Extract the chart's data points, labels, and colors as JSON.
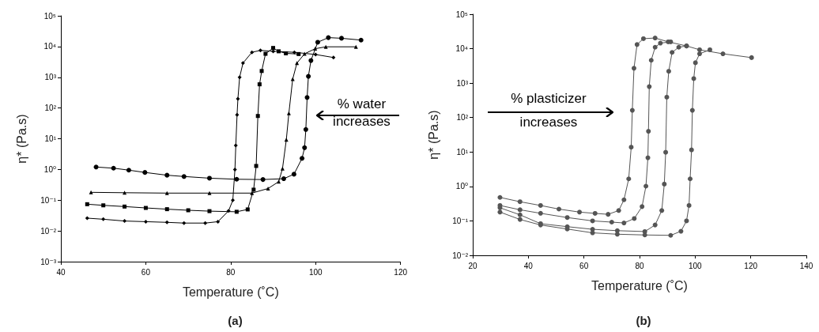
{
  "chart_data": [
    {
      "type": "line",
      "title": "(a)",
      "xlabel": "Temperature (˚C)",
      "ylabel": "η* (Pa.s)",
      "log": "y",
      "xlim": [
        40,
        120
      ],
      "xticks": [
        40,
        60,
        80,
        100,
        120
      ],
      "ylim": [
        0.001,
        100000
      ],
      "yticks": [
        {
          "value": 0.001,
          "label": "10⁻³"
        },
        {
          "value": 0.01,
          "label": "10⁻²"
        },
        {
          "value": 0.1,
          "label": "10⁻¹"
        },
        {
          "value": 1,
          "label": "10⁰"
        },
        {
          "value": 10,
          "label": "10¹"
        },
        {
          "value": 100,
          "label": "10²"
        },
        {
          "value": 1000,
          "label": "10³"
        },
        {
          "value": 10000,
          "label": "10⁴"
        },
        {
          "value": 100000,
          "label": "10⁵"
        }
      ],
      "annotations": [
        "% water increases"
      ],
      "series": [
        {
          "color": "#000000",
          "marker": "diamond",
          "x": [
            46.2,
            50,
            55,
            60,
            65,
            69,
            74,
            77,
            79.5,
            80.5,
            81,
            81.2,
            81.5,
            81.7,
            82.1,
            82.9,
            85,
            87,
            90,
            95,
            100,
            104.2
          ],
          "values": [
            0.026,
            0.024,
            0.021,
            0.02,
            0.019,
            0.018,
            0.018,
            0.02,
            0.045,
            0.1,
            1,
            6,
            60,
            200,
            1000,
            2900,
            6500,
            7500,
            7000,
            6500,
            5500,
            4400
          ]
        },
        {
          "color": "#000000",
          "marker": "square",
          "x": [
            46.2,
            50,
            55,
            60,
            65,
            70,
            75,
            81.4,
            84,
            85.4,
            86,
            86.4,
            86.8,
            87.3,
            88.2,
            90,
            91.3,
            93,
            96
          ],
          "values": [
            0.074,
            0.068,
            0.062,
            0.056,
            0.051,
            0.047,
            0.044,
            0.042,
            0.05,
            0.22,
            1.3,
            55,
            590,
            1600,
            5800,
            9000,
            7000,
            6000,
            5700
          ]
        },
        {
          "color": "#000000",
          "marker": "triangle",
          "x": [
            47.1,
            55,
            65,
            75,
            85,
            88.8,
            91.3,
            92.2,
            93.1,
            93.7,
            94.6,
            95.6,
            97.4,
            99.9,
            102.4,
            109.5
          ],
          "values": [
            0.18,
            0.175,
            0.17,
            0.17,
            0.17,
            0.24,
            0.4,
            1.07,
            9.3,
            68,
            870,
            2900,
            5800,
            8500,
            9800,
            9800
          ]
        },
        {
          "color": "#000000",
          "marker": "circle",
          "x": [
            48.3,
            52.4,
            56,
            59.8,
            65,
            69,
            75,
            81.4,
            87.6,
            92.5,
            94.9,
            96.8,
            97.4,
            97.7,
            98,
            98.3,
            98.9,
            100.5,
            103,
            106.1,
            110.7
          ],
          "values": [
            1.2,
            1.1,
            0.95,
            0.8,
            0.65,
            0.59,
            0.52,
            0.48,
            0.47,
            0.5,
            0.7,
            2.3,
            5.1,
            20,
            220,
            1070,
            3500,
            13800,
            19500,
            18600,
            16200
          ]
        }
      ]
    },
    {
      "type": "line",
      "title": "(b)",
      "xlabel": "Temperature (˚C)",
      "ylabel": "η* (Pa.s)",
      "log": "y",
      "xlim": [
        20,
        140
      ],
      "xticks": [
        20,
        40,
        60,
        80,
        100,
        120,
        140
      ],
      "ylim": [
        0.01,
        100000
      ],
      "yticks": [
        {
          "value": 0.01,
          "label": "10⁻²"
        },
        {
          "value": 0.1,
          "label": "10⁻¹"
        },
        {
          "value": 1,
          "label": "10⁰"
        },
        {
          "value": 10,
          "label": "10¹"
        },
        {
          "value": 100,
          "label": "10²"
        },
        {
          "value": 1000,
          "label": "10³"
        },
        {
          "value": 10000,
          "label": "10⁴"
        },
        {
          "value": 100000,
          "label": "10⁵"
        }
      ],
      "annotations": [
        "% plasticizer increases"
      ],
      "series": [
        {
          "color": "#555555",
          "marker": "circle",
          "x": [
            29.8,
            37,
            44.4,
            51,
            58.4,
            64,
            68.7,
            72.5,
            74.4,
            76.1,
            77,
            77.4,
            78,
            79.1,
            81.4,
            85.6,
            90.3,
            96.9,
            101.6,
            110,
            120.3
          ],
          "values": [
            0.48,
            0.36,
            0.28,
            0.22,
            0.18,
            0.165,
            0.155,
            0.2,
            0.41,
            1.66,
            13.8,
            162,
            2700,
            13200,
            19500,
            20400,
            15800,
            12000,
            9300,
            7100,
            5500
          ]
        },
        {
          "color": "#555555",
          "marker": "circle",
          "x": [
            29.8,
            37,
            44.4,
            54,
            63.1,
            70,
            74.4,
            78.1,
            80.9,
            82.3,
            83,
            83.2,
            83.5,
            84.2,
            85.6,
            87.5,
            91.2
          ],
          "values": [
            0.28,
            0.21,
            0.166,
            0.125,
            0.1,
            0.092,
            0.087,
            0.117,
            0.26,
            1.02,
            6.8,
            40,
            790,
            4600,
            11000,
            14500,
            15800
          ]
        },
        {
          "color": "#555555",
          "marker": "circle",
          "x": [
            29.8,
            37,
            44.4,
            54,
            63.1,
            72,
            81.9,
            85.6,
            88,
            88.9,
            89.4,
            89.8,
            90.5,
            91.7,
            94.1,
            96.9
          ],
          "values": [
            0.24,
            0.15,
            0.083,
            0.068,
            0.057,
            0.052,
            0.049,
            0.076,
            0.2,
            1.17,
            9.8,
            390,
            2200,
            7800,
            11000,
            12000
          ]
        },
        {
          "color": "#555555",
          "marker": "circle",
          "x": [
            29.8,
            37,
            44.4,
            54,
            63.1,
            72,
            81.9,
            91.2,
            94.9,
            96.9,
            97.8,
            98.2,
            98.7,
            99,
            99.5,
            100.1,
            101.6,
            105.3
          ],
          "values": [
            0.18,
            0.11,
            0.076,
            0.058,
            0.045,
            0.041,
            0.039,
            0.038,
            0.05,
            0.1,
            0.28,
            1.66,
            11.5,
            162,
            1350,
            3900,
            7100,
            9300
          ]
        }
      ]
    }
  ]
}
